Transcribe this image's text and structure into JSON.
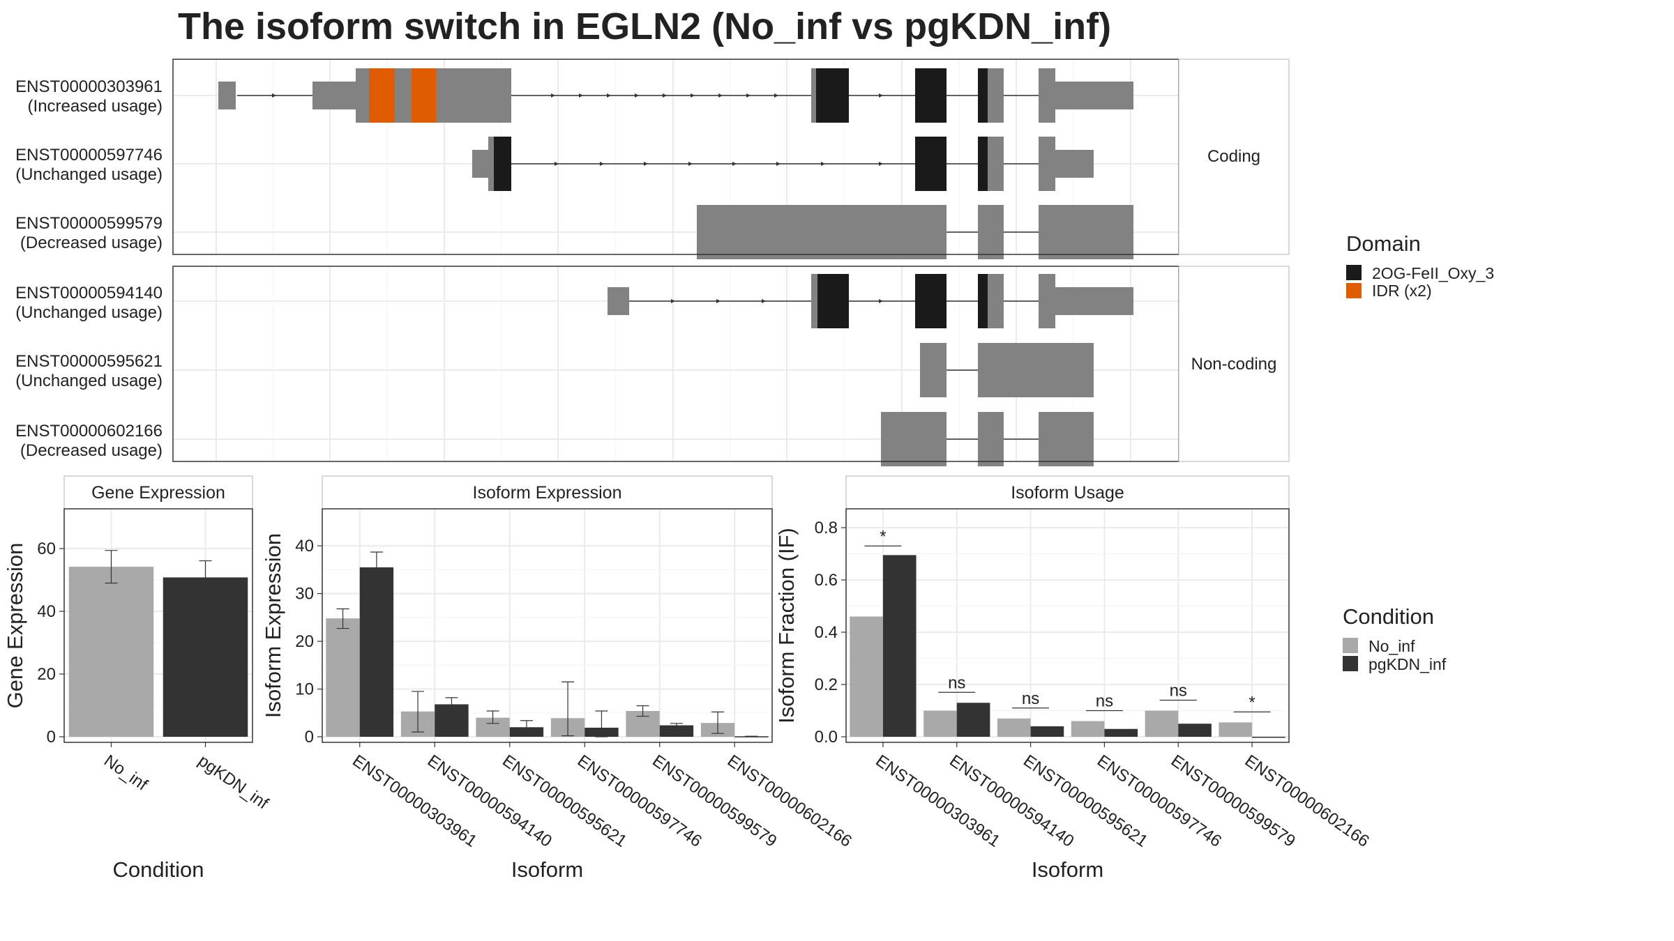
{
  "title": "The isoform switch in EGLN2 (No_inf vs pgKDN_inf)",
  "colors": {
    "domain_oxy": "#1a1a1a",
    "domain_idr": "#e05c00",
    "exon": "#828282",
    "no_inf": "#a9a9a9",
    "pgkdn_inf": "#333333",
    "grid": "#ebebeb",
    "panel_border": "#333333"
  },
  "structure_panel": {
    "groups": [
      {
        "label": "Coding",
        "isoforms": [
          {
            "id": "ENST00000303961",
            "usage": "(Increased usage)"
          },
          {
            "id": "ENST00000597746",
            "usage": "(Unchanged usage)"
          },
          {
            "id": "ENST00000599579",
            "usage": "(Decreased usage)"
          }
        ]
      },
      {
        "label": "Non-coding",
        "isoforms": [
          {
            "id": "ENST00000594140",
            "usage": "(Unchanged usage)"
          },
          {
            "id": "ENST00000595621",
            "usage": "(Unchanged usage)"
          },
          {
            "id": "ENST00000602166",
            "usage": "(Decreased usage)"
          }
        ]
      }
    ],
    "legend": {
      "title": "Domain",
      "items": [
        {
          "label": "2OG-FeII_Oxy_3",
          "color": "#1a1a1a"
        },
        {
          "label": "IDR (x2)",
          "color": "#e05c00"
        }
      ]
    }
  },
  "condition_legend": {
    "title": "Condition",
    "items": [
      {
        "label": "No_inf",
        "color": "#a9a9a9"
      },
      {
        "label": "pgKDN_inf",
        "color": "#333333"
      }
    ]
  },
  "chart_data": [
    {
      "type": "bar",
      "title": "Gene Expression",
      "xlabel": "Condition",
      "ylabel": "Gene Expression",
      "categories": [
        "No_inf",
        "pgKDN_inf"
      ],
      "values": [
        54.2,
        50.8
      ],
      "errors": [
        [
          49.0,
          59.4
        ],
        [
          45.6,
          56.1
        ]
      ],
      "yticks": [
        0,
        20,
        40,
        60
      ],
      "ylim": [
        0,
        70
      ]
    },
    {
      "type": "bar",
      "title": "Isoform Expression",
      "xlabel": "Isoform",
      "ylabel": "Isoform Expression",
      "categories": [
        "ENST00000303961",
        "ENST00000594140",
        "ENST00000595621",
        "ENST00000597746",
        "ENST00000599579",
        "ENST00000602166"
      ],
      "series": [
        {
          "name": "No_inf",
          "values": [
            24.8,
            5.3,
            4.0,
            3.9,
            5.4,
            2.9
          ],
          "errors": [
            [
              22.7,
              26.8
            ],
            [
              1.0,
              9.5
            ],
            [
              2.8,
              5.4
            ],
            [
              0.2,
              11.5
            ],
            [
              4.3,
              6.5
            ],
            [
              0.7,
              5.2
            ]
          ]
        },
        {
          "name": "pgKDN_inf",
          "values": [
            35.5,
            6.8,
            2.0,
            1.9,
            2.4,
            0.1
          ],
          "errors": [
            [
              32.3,
              38.7
            ],
            [
              5.3,
              8.2
            ],
            [
              0.6,
              3.4
            ],
            [
              0.0,
              5.4
            ],
            [
              2.0,
              2.8
            ],
            [
              0.1,
              0.1
            ]
          ]
        }
      ],
      "yticks": [
        0,
        10,
        20,
        30,
        40
      ],
      "ylim": [
        0,
        46
      ]
    },
    {
      "type": "bar",
      "title": "Isoform Usage",
      "xlabel": "Isoform",
      "ylabel": "Isoform Fraction (IF)",
      "categories": [
        "ENST00000303961",
        "ENST00000594140",
        "ENST00000595621",
        "ENST00000597746",
        "ENST00000599579",
        "ENST00000602166"
      ],
      "series": [
        {
          "name": "No_inf",
          "values": [
            0.46,
            0.1,
            0.07,
            0.06,
            0.1,
            0.055
          ]
        },
        {
          "name": "pgKDN_inf",
          "values": [
            0.695,
            0.13,
            0.04,
            0.03,
            0.05,
            0.0
          ]
        }
      ],
      "significance": [
        "*",
        "ns",
        "ns",
        "ns",
        "ns",
        "*"
      ],
      "sig_y": [
        0.73,
        0.17,
        0.11,
        0.1,
        0.14,
        0.095
      ],
      "yticks": [
        0.0,
        0.2,
        0.4,
        0.6,
        0.8
      ],
      "ytick_labels": [
        "0.0",
        "0.2",
        "0.4",
        "0.6",
        "0.8"
      ],
      "ylim": [
        0,
        0.84
      ]
    }
  ]
}
